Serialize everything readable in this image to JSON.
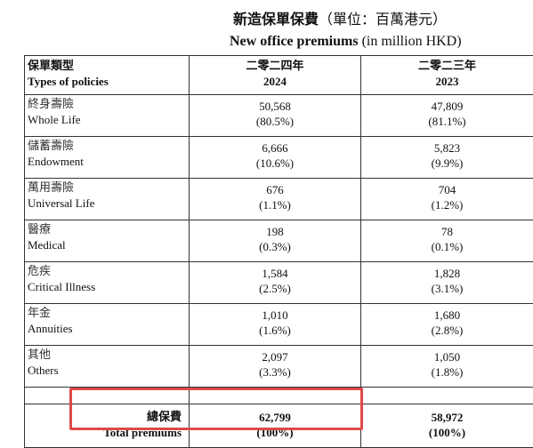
{
  "title": {
    "zh": "新造保單保費",
    "zh_unit": "（單位：百萬港元）",
    "en": "New office premiums",
    "en_unit": "(in million HKD)"
  },
  "headers": {
    "type_zh": "保單類型",
    "type_en": "Types of policies",
    "y2024_zh": "二零二四年",
    "y2024": "2024",
    "y2023_zh": "二零二三年",
    "y2023": "2023"
  },
  "rows": [
    {
      "zh": "終身壽險",
      "en": "Whole Life",
      "v2024": "50,568",
      "p2024": "(80.5%)",
      "v2023": "47,809",
      "p2023": "(81.1%)"
    },
    {
      "zh": "儲蓄壽險",
      "en": "Endowment",
      "v2024": "6,666",
      "p2024": "(10.6%)",
      "v2023": "5,823",
      "p2023": "(9.9%)"
    },
    {
      "zh": "萬用壽險",
      "en": "Universal Life",
      "v2024": "676",
      "p2024": "(1.1%)",
      "v2023": "704",
      "p2023": "(1.2%)"
    },
    {
      "zh": "醫療",
      "en": "Medical",
      "v2024": "198",
      "p2024": "(0.3%)",
      "v2023": "78",
      "p2023": "(0.1%)"
    },
    {
      "zh": "危疾",
      "en": "Critical Illness",
      "v2024": "1,584",
      "p2024": "(2.5%)",
      "v2023": "1,828",
      "p2023": "(3.1%)"
    },
    {
      "zh": "年金",
      "en": "Annuities",
      "v2024": "1,010",
      "p2024": "(1.6%)",
      "v2023": "1,680",
      "p2023": "(2.8%)"
    },
    {
      "zh": "其他",
      "en": "Others",
      "v2024": "2,097",
      "p2024": "(3.3%)",
      "v2023": "1,050",
      "p2023": "(1.8%)"
    }
  ],
  "total": {
    "zh": "總保費",
    "en": "Total premiums",
    "v2024": "62,799",
    "p2024": "(100%)",
    "v2023": "58,972",
    "p2023": "(100%)"
  },
  "colors": {
    "highlight_border": "#e04848",
    "grid": "#333333"
  }
}
